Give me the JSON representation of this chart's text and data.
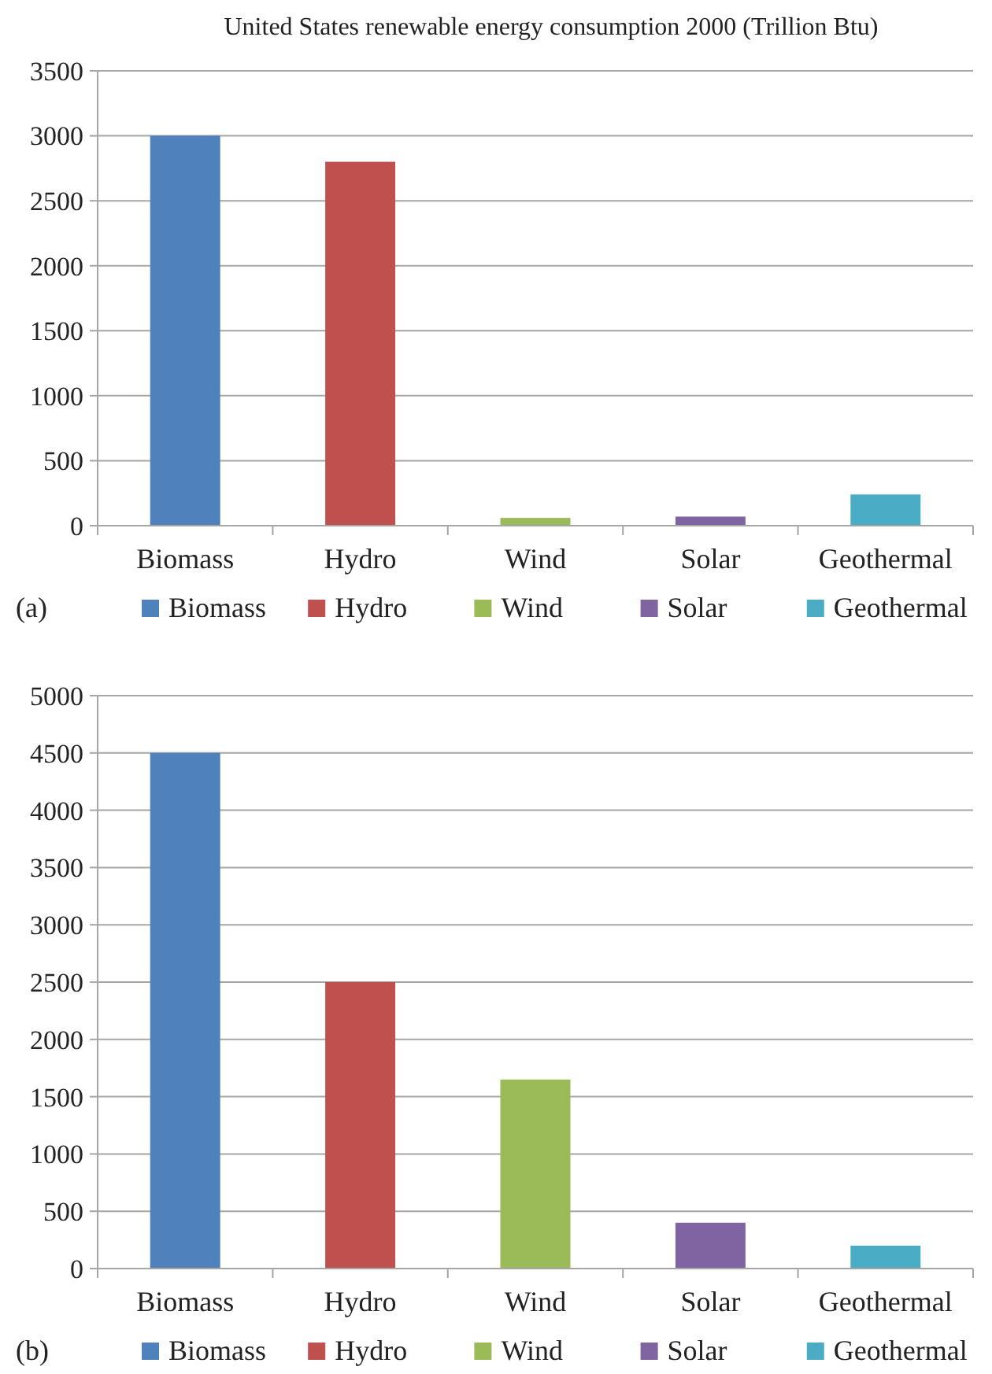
{
  "chart_data": [
    {
      "type": "bar",
      "title": "United States renewable energy consumption 2000 (Trillion Btu)",
      "categories": [
        "Biomass",
        "Hydro",
        "Wind",
        "Solar",
        "Geothermal"
      ],
      "stacked": true,
      "series": [
        {
          "name": "Biomass",
          "color": "#4f81bd",
          "values": [
            3000,
            null,
            null,
            null,
            null
          ]
        },
        {
          "name": "Hydro",
          "color": "#c0504d",
          "values": [
            null,
            2800,
            null,
            null,
            null
          ]
        },
        {
          "name": "Wind",
          "color": "#9bbb59",
          "values": [
            null,
            null,
            60,
            null,
            null
          ]
        },
        {
          "name": "Solar",
          "color": "#8064a2",
          "values": [
            null,
            null,
            null,
            70,
            null
          ]
        },
        {
          "name": "Geothermal",
          "color": "#4bacc6",
          "values": [
            null,
            null,
            null,
            null,
            240
          ]
        }
      ],
      "ylim": [
        0,
        3500
      ],
      "yticks": [
        0,
        500,
        1000,
        1500,
        2000,
        2500,
        3000,
        3500
      ],
      "grid": "y",
      "legend": "bottom",
      "annotations": [
        "(a)"
      ]
    },
    {
      "type": "bar",
      "categories": [
        "Biomass",
        "Hydro",
        "Wind",
        "Solar",
        "Geothermal"
      ],
      "stacked": true,
      "series": [
        {
          "name": "Biomass",
          "color": "#4f81bd",
          "values": [
            4500,
            null,
            null,
            null,
            null
          ]
        },
        {
          "name": "Hydro",
          "color": "#c0504d",
          "values": [
            null,
            2500,
            null,
            null,
            null
          ]
        },
        {
          "name": "Wind",
          "color": "#9bbb59",
          "values": [
            null,
            null,
            1650,
            null,
            null
          ]
        },
        {
          "name": "Solar",
          "color": "#8064a2",
          "values": [
            null,
            null,
            null,
            400,
            null
          ]
        },
        {
          "name": "Geothermal",
          "color": "#4bacc6",
          "values": [
            null,
            null,
            null,
            null,
            200
          ]
        }
      ],
      "ylim": [
        0,
        5000
      ],
      "yticks": [
        0,
        500,
        1000,
        1500,
        2000,
        2500,
        3000,
        3500,
        4000,
        4500,
        5000
      ],
      "grid": "y",
      "legend": "bottom",
      "annotations": [
        "(b)"
      ]
    }
  ]
}
